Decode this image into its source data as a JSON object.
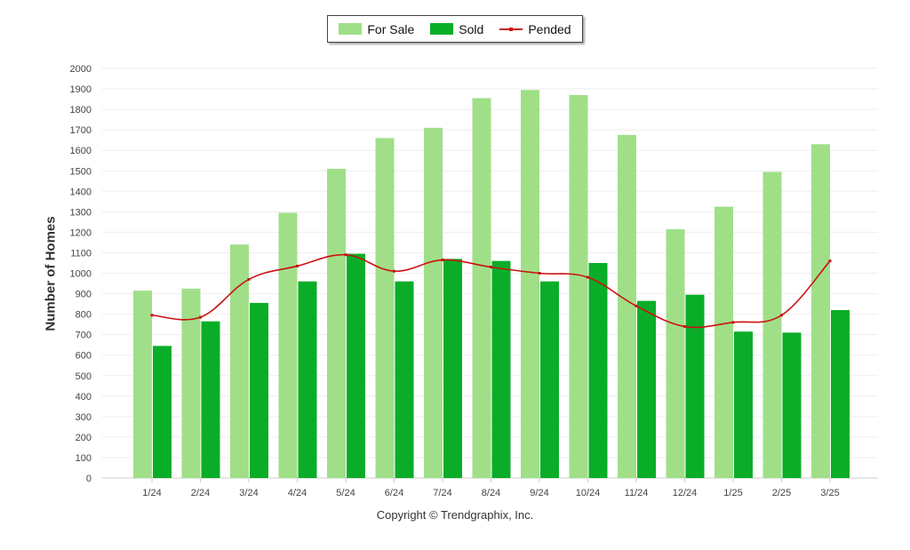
{
  "chart_data": {
    "type": "bar",
    "title": "",
    "xlabel": "",
    "ylabel": "Number of Homes",
    "ylim": [
      0,
      2000
    ],
    "yticks": [
      0,
      100,
      200,
      300,
      400,
      500,
      600,
      700,
      800,
      900,
      1000,
      1100,
      1200,
      1300,
      1400,
      1500,
      1600,
      1700,
      1800,
      1900,
      2000
    ],
    "categories": [
      "1/24",
      "2/24",
      "3/24",
      "4/24",
      "5/24",
      "6/24",
      "7/24",
      "8/24",
      "9/24",
      "10/24",
      "11/24",
      "12/24",
      "1/25",
      "2/25",
      "3/25"
    ],
    "series": [
      {
        "name": "For Sale",
        "type": "bar",
        "color": "#a0df88",
        "values": [
          915,
          925,
          1140,
          1295,
          1510,
          1660,
          1710,
          1855,
          1895,
          1870,
          1675,
          1215,
          1325,
          1495,
          1630
        ]
      },
      {
        "name": "Sold",
        "type": "bar",
        "color": "#0aad28",
        "values": [
          645,
          765,
          855,
          960,
          1095,
          960,
          1070,
          1060,
          960,
          1050,
          865,
          895,
          715,
          710,
          820
        ]
      },
      {
        "name": "Pended",
        "type": "line",
        "color": "#cc1111",
        "values": [
          795,
          785,
          970,
          1035,
          1090,
          1010,
          1065,
          1030,
          1000,
          980,
          840,
          740,
          760,
          795,
          1060
        ]
      }
    ],
    "legend_position": "top-center",
    "grid": true
  },
  "footer": {
    "copyright": "Copyright © Trendgraphix, Inc."
  }
}
